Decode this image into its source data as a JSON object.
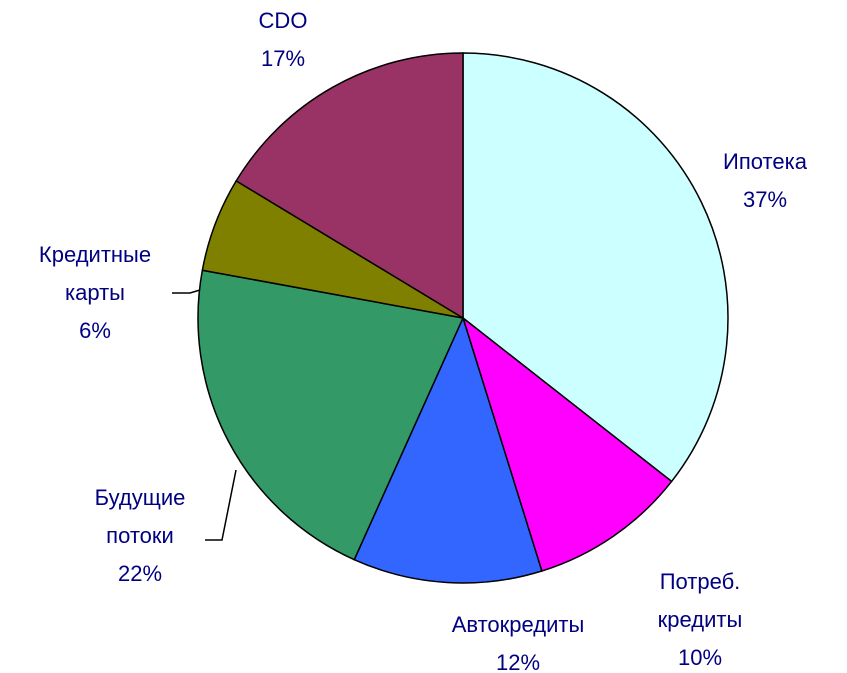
{
  "chart_data": {
    "type": "pie",
    "categories": [
      "Ипотека",
      "Потреб. кредиты",
      "Автокредиты",
      "Будущие потоки",
      "Кредитные карты",
      "CDO"
    ],
    "values": [
      37,
      10,
      12,
      22,
      6,
      17
    ],
    "value_labels": [
      "37%",
      "10%",
      "12%",
      "22%",
      "6%",
      "17%"
    ],
    "colors": [
      "#ccffff",
      "#ff00ff",
      "#3366ff",
      "#339966",
      "#808000",
      "#993366"
    ]
  }
}
